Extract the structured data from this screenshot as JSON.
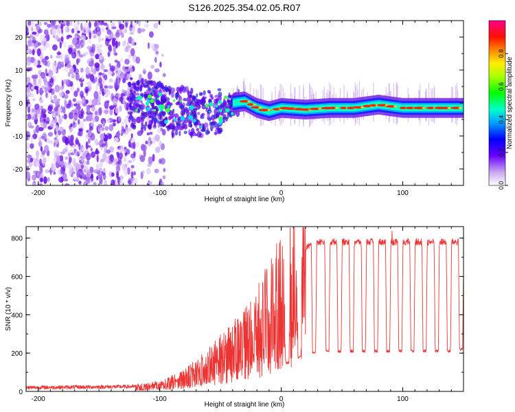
{
  "figure_title": "S126.2025.354.02.05.R07",
  "chart_data": [
    {
      "type": "heatmap",
      "title": "",
      "xlabel": "Height of straight line (km)",
      "ylabel": "Frequency (Hz)",
      "xlim": [
        -210,
        150
      ],
      "ylim": [
        -25,
        25
      ],
      "xticks": [
        -200,
        -100,
        0,
        100
      ],
      "yticks": [
        -20,
        -10,
        0,
        10,
        20
      ],
      "colorbar": {
        "label": "Normalized spectral amplitude",
        "range": [
          0,
          1
        ],
        "ticks": [
          0.0,
          0.2,
          0.4,
          0.6,
          0.8
        ],
        "tick_labels": [
          "0.0",
          "0.2",
          "0.4",
          "0.6",
          "0.8"
        ]
      },
      "ridge": {
        "description_points_x_km": [
          -125,
          -110,
          -100,
          -90,
          -80,
          -70,
          -60,
          -50,
          -40,
          -30,
          -20,
          -10,
          0,
          20,
          40,
          60,
          80,
          100,
          120,
          150
        ],
        "frequency_hz": [
          -1,
          0,
          -1,
          -3,
          -2,
          -4,
          -2,
          -3,
          0,
          0.5,
          -1.5,
          -2.5,
          -1.5,
          -2,
          -1.5,
          -1.5,
          -0.5,
          -1.5,
          -1.5,
          -1.5
        ]
      }
    },
    {
      "type": "line",
      "title": "",
      "xlabel": "Height of straight line (km)",
      "ylabel": "SNR (10 * v/v)",
      "xlim": [
        -210,
        150
      ],
      "ylim": [
        0,
        860
      ],
      "xticks": [
        -200,
        -100,
        0,
        100
      ],
      "yticks": [
        0,
        200,
        400,
        600,
        800
      ],
      "color": "#ee3333",
      "trend_points": {
        "x": [
          -210,
          -120,
          -100,
          -80,
          -60,
          -40,
          -20,
          0,
          10,
          20,
          30,
          150
        ],
        "y": [
          20,
          25,
          35,
          70,
          140,
          230,
          340,
          520,
          650,
          750,
          780,
          780
        ]
      },
      "dips": {
        "x": [
          5,
          15,
          27,
          38,
          48,
          58,
          68,
          78,
          88,
          98,
          108,
          118,
          128,
          138,
          148
        ],
        "y": [
          150,
          180,
          205,
          210,
          210,
          210,
          210,
          210,
          210,
          210,
          210,
          210,
          210,
          210,
          220
        ]
      }
    }
  ]
}
